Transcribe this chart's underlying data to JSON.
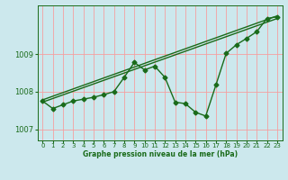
{
  "xlabel": "Graphe pression niveau de la mer (hPa)",
  "background_color": "#cce8ed",
  "grid_color": "#f5a0a0",
  "line_color": "#1a6b1a",
  "xlim": [
    -0.5,
    23.5
  ],
  "ylim": [
    1006.7,
    1010.3
  ],
  "yticks": [
    1007,
    1008,
    1009
  ],
  "xticks": [
    0,
    1,
    2,
    3,
    4,
    5,
    6,
    7,
    8,
    9,
    10,
    11,
    12,
    13,
    14,
    15,
    16,
    17,
    18,
    19,
    20,
    21,
    22,
    23
  ],
  "hours": [
    0,
    1,
    2,
    3,
    4,
    5,
    6,
    7,
    8,
    9,
    10,
    11,
    12,
    13,
    14,
    15,
    16,
    17,
    18,
    19,
    20,
    21,
    22,
    23
  ],
  "pressure_main": [
    1007.75,
    1007.55,
    1007.65,
    1007.75,
    1007.8,
    1007.85,
    1007.92,
    1008.0,
    1008.38,
    1008.78,
    1008.58,
    1008.68,
    1008.38,
    1007.72,
    1007.68,
    1007.45,
    1007.35,
    1008.18,
    1009.02,
    1009.25,
    1009.42,
    1009.6,
    1009.95,
    1010.0
  ],
  "linear1": [
    1007.72,
    1009.95
  ],
  "linear2": [
    1007.78,
    1010.02
  ],
  "marker": "D",
  "markersize": 2.5,
  "linewidth": 1.0
}
